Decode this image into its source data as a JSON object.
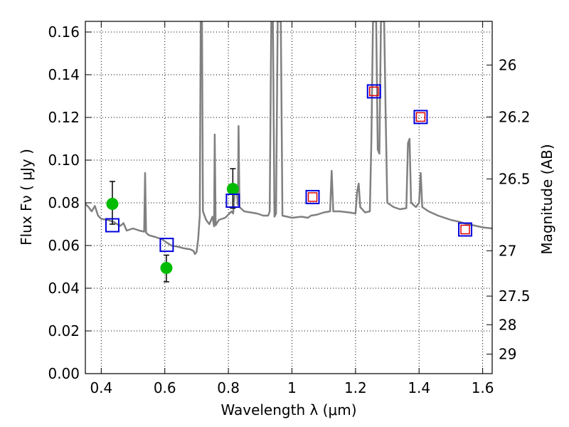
{
  "chart_data": {
    "type": "line",
    "xlabel": "Wavelength  λ (μm)",
    "ylabel": "Flux  Fν  ( μJy )",
    "y2label": "Magnitude (AB)",
    "xlim": [
      0.35,
      1.63
    ],
    "ylim": [
      0.0,
      0.165
    ],
    "grid": true,
    "x_ticks": [
      0.4,
      0.6,
      0.8,
      1.0,
      1.2,
      1.4,
      1.6
    ],
    "x_tick_labels": [
      "0.4",
      "0.6",
      "0.8",
      "1",
      "1.2",
      "1.4",
      "1.6"
    ],
    "y_ticks": [
      0.0,
      0.02,
      0.04,
      0.06,
      0.08,
      0.1,
      0.12,
      0.14,
      0.16
    ],
    "y_tick_labels": [
      "0.00",
      "0.02",
      "0.04",
      "0.06",
      "0.08",
      "0.10",
      "0.12",
      "0.14",
      "0.16"
    ],
    "y2_ticks": [
      {
        "label": "26",
        "mag": 26.0
      },
      {
        "label": "26.2",
        "mag": 26.2
      },
      {
        "label": "26.5",
        "mag": 26.5
      },
      {
        "label": "27",
        "mag": 27.0
      },
      {
        "label": "27.5",
        "mag": 27.5
      },
      {
        "label": "28",
        "mag": 28.0
      },
      {
        "label": "29",
        "mag": 29.0
      }
    ],
    "colors": {
      "model": "#808080",
      "observed": "#00bb00",
      "model_photometry": "#0000dd",
      "model_photometry_inner": "#dd0000",
      "errorbar": "#000000",
      "grid": "#000000"
    },
    "series": [
      {
        "kind": "spectrum",
        "points": [
          [
            0.35,
            0.0795
          ],
          [
            0.36,
            0.078
          ],
          [
            0.37,
            0.076
          ],
          [
            0.38,
            0.0785
          ],
          [
            0.39,
            0.074
          ],
          [
            0.4,
            0.0725
          ],
          [
            0.42,
            0.072
          ],
          [
            0.44,
            0.071
          ],
          [
            0.45,
            0.07
          ],
          [
            0.46,
            0.0692
          ],
          [
            0.47,
            0.0705
          ],
          [
            0.48,
            0.067
          ],
          [
            0.5,
            0.068
          ],
          [
            0.52,
            0.067
          ],
          [
            0.535,
            0.0665
          ],
          [
            0.538,
            0.094
          ],
          [
            0.541,
            0.066
          ],
          [
            0.55,
            0.0648
          ],
          [
            0.57,
            0.064
          ],
          [
            0.59,
            0.063
          ],
          [
            0.62,
            0.06
          ],
          [
            0.64,
            0.0595
          ],
          [
            0.66,
            0.0587
          ],
          [
            0.68,
            0.0582
          ],
          [
            0.69,
            0.0575
          ],
          [
            0.695,
            0.056
          ],
          [
            0.7,
            0.057
          ],
          [
            0.705,
            0.063
          ],
          [
            0.71,
            0.074
          ],
          [
            0.713,
            0.165
          ],
          [
            0.717,
            0.165
          ],
          [
            0.72,
            0.076
          ],
          [
            0.73,
            0.072
          ],
          [
            0.74,
            0.07
          ],
          [
            0.75,
            0.0735
          ],
          [
            0.755,
            0.069
          ],
          [
            0.757,
            0.112
          ],
          [
            0.76,
            0.0695
          ],
          [
            0.77,
            0.072
          ],
          [
            0.79,
            0.073
          ],
          [
            0.81,
            0.076
          ],
          [
            0.815,
            0.075
          ],
          [
            0.82,
            0.085
          ],
          [
            0.826,
            0.087
          ],
          [
            0.83,
            0.079
          ],
          [
            0.832,
            0.116
          ],
          [
            0.835,
            0.078
          ],
          [
            0.85,
            0.076
          ],
          [
            0.87,
            0.0755
          ],
          [
            0.89,
            0.075
          ],
          [
            0.91,
            0.074
          ],
          [
            0.925,
            0.074
          ],
          [
            0.93,
            0.076
          ],
          [
            0.935,
            0.165
          ],
          [
            0.94,
            0.165
          ],
          [
            0.945,
            0.0735
          ],
          [
            0.95,
            0.075
          ],
          [
            0.955,
            0.165
          ],
          [
            0.965,
            0.165
          ],
          [
            0.97,
            0.074
          ],
          [
            1.0,
            0.073
          ],
          [
            1.03,
            0.0735
          ],
          [
            1.05,
            0.073
          ],
          [
            1.06,
            0.074
          ],
          [
            1.08,
            0.0745
          ],
          [
            1.1,
            0.0755
          ],
          [
            1.12,
            0.076
          ],
          [
            1.125,
            0.095
          ],
          [
            1.13,
            0.076
          ],
          [
            1.15,
            0.076
          ],
          [
            1.18,
            0.0755
          ],
          [
            1.2,
            0.075
          ],
          [
            1.205,
            0.085
          ],
          [
            1.21,
            0.089
          ],
          [
            1.215,
            0.078
          ],
          [
            1.23,
            0.0755
          ],
          [
            1.245,
            0.076
          ],
          [
            1.25,
            0.11
          ],
          [
            1.255,
            0.165
          ],
          [
            1.265,
            0.165
          ],
          [
            1.27,
            0.105
          ],
          [
            1.275,
            0.103
          ],
          [
            1.28,
            0.165
          ],
          [
            1.29,
            0.165
          ],
          [
            1.295,
            0.12
          ],
          [
            1.3,
            0.08
          ],
          [
            1.32,
            0.078
          ],
          [
            1.34,
            0.077
          ],
          [
            1.36,
            0.0775
          ],
          [
            1.365,
            0.108
          ],
          [
            1.37,
            0.11
          ],
          [
            1.375,
            0.08
          ],
          [
            1.39,
            0.078
          ],
          [
            1.4,
            0.08
          ],
          [
            1.405,
            0.094
          ],
          [
            1.41,
            0.078
          ],
          [
            1.43,
            0.076
          ],
          [
            1.46,
            0.074
          ],
          [
            1.5,
            0.072
          ],
          [
            1.53,
            0.071
          ],
          [
            1.55,
            0.07
          ],
          [
            1.57,
            0.0695
          ],
          [
            1.6,
            0.0685
          ],
          [
            1.63,
            0.068
          ]
        ]
      },
      {
        "kind": "observed",
        "points": [
          {
            "x": 0.435,
            "y": 0.0795,
            "err_low": 0.0095,
            "err_high": 0.0105
          },
          {
            "x": 0.605,
            "y": 0.0495,
            "err_low": 0.0065,
            "err_high": 0.006
          },
          {
            "x": 0.814,
            "y": 0.0865,
            "err_low": 0.009,
            "err_high": 0.0095
          }
        ]
      },
      {
        "kind": "model_photometry",
        "points": [
          {
            "x": 0.435,
            "y": 0.0695
          },
          {
            "x": 0.606,
            "y": 0.0603
          },
          {
            "x": 0.814,
            "y": 0.081
          },
          {
            "x": 1.065,
            "y": 0.0827
          },
          {
            "x": 1.258,
            "y": 0.1322
          },
          {
            "x": 1.405,
            "y": 0.1202
          },
          {
            "x": 1.545,
            "y": 0.0675
          }
        ]
      },
      {
        "kind": "model_photometry_inner",
        "points": [
          {
            "x": 1.065,
            "y": 0.0827
          },
          {
            "x": 1.258,
            "y": 0.1322
          },
          {
            "x": 1.405,
            "y": 0.1202
          },
          {
            "x": 1.545,
            "y": 0.0675
          }
        ]
      }
    ]
  }
}
